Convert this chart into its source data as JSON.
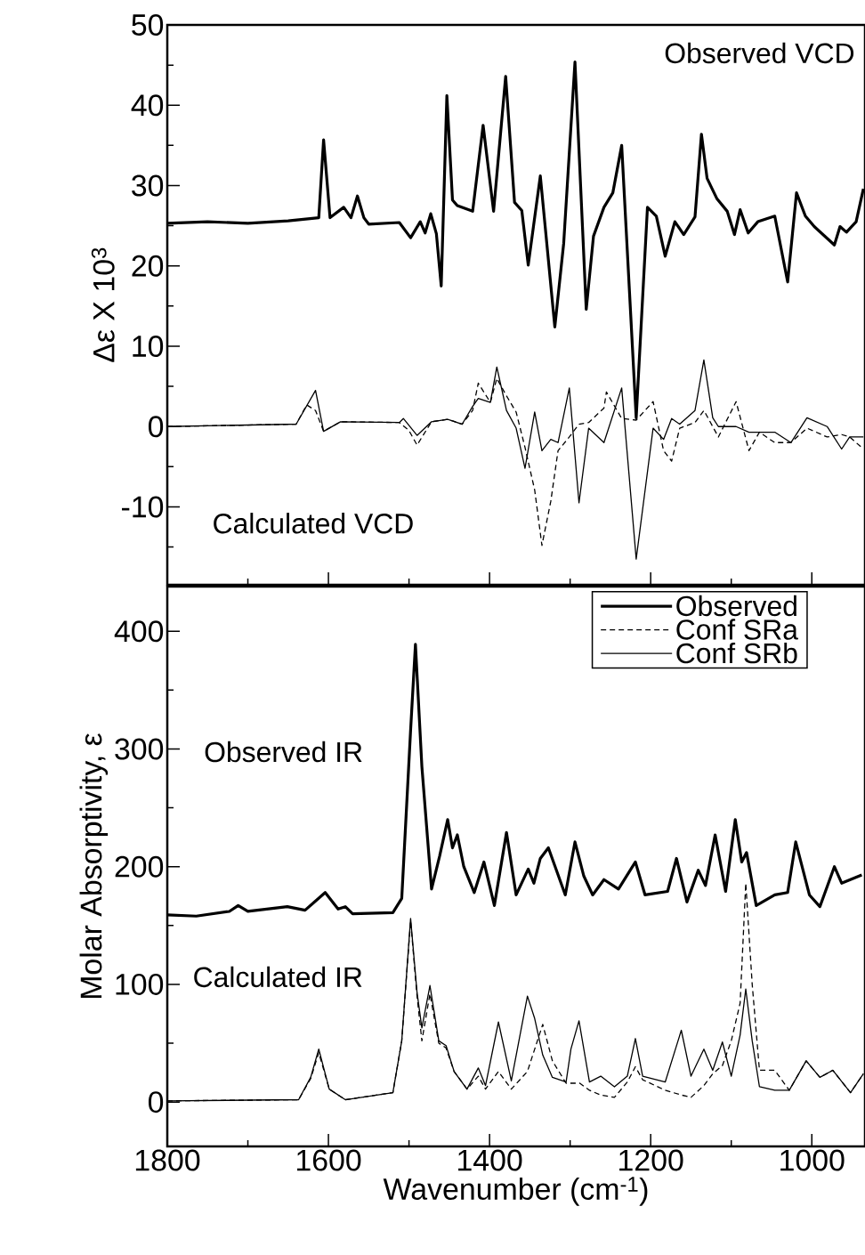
{
  "chart_data": [
    {
      "type": "line",
      "ylabel": "Δε X 10$^{3}$",
      "xlim": [
        1800,
        934
      ],
      "ylim": [
        -19.7,
        50
      ],
      "xticks": [
        1800,
        {
          "value": 1700,
          "label": null
        },
        1600,
        {
          "value": 1500,
          "label": null
        },
        1400,
        {
          "value": 1300,
          "label": null
        },
        1200,
        {
          "value": 1100,
          "label": null
        },
        1000
      ],
      "yticks": [
        {
          "value": -15,
          "label": null
        },
        -10,
        {
          "value": -5,
          "label": null
        },
        0,
        {
          "value": 5,
          "label": null
        },
        10,
        {
          "value": 15,
          "label": null
        },
        20,
        {
          "value": 25,
          "label": null
        },
        30,
        {
          "value": 35,
          "label": null
        },
        40,
        {
          "value": 45,
          "label": null
        },
        50
      ],
      "tick_labels": "y",
      "annotations": [
        "Observed VCD",
        "Calculated VCD"
      ],
      "series": [
        {
          "color": "#000000",
          "line_style": "solid",
          "x": [
            1800,
            1750,
            1700,
            1650,
            1612,
            1606,
            1598,
            1581,
            1572,
            1564,
            1556,
            1550,
            1512,
            1498,
            1486,
            1480,
            1473,
            1466,
            1460,
            1453,
            1446,
            1440,
            1421,
            1408,
            1395,
            1380,
            1369,
            1360,
            1352,
            1337,
            1319,
            1308,
            1294,
            1280,
            1271,
            1258,
            1247,
            1236,
            1218,
            1204,
            1193,
            1182,
            1170,
            1159,
            1145,
            1137,
            1130,
            1118,
            1105,
            1096,
            1089,
            1079,
            1067,
            1046,
            1030,
            1019,
            1008,
            997,
            972,
            965,
            957,
            945,
            936
          ],
          "values": [
            25.3,
            25.5,
            25.3,
            25.6,
            26,
            35.7,
            26,
            27.3,
            26,
            28.7,
            26,
            25.2,
            25.4,
            23.5,
            25.5,
            24.1,
            26.5,
            24,
            17.5,
            41.2,
            28.2,
            27.5,
            26.8,
            37.5,
            26.8,
            43.6,
            27.9,
            26.9,
            20.1,
            31.2,
            12.4,
            22.8,
            45.4,
            14.6,
            23.7,
            27.3,
            29.1,
            35,
            1.1,
            27.3,
            26.2,
            21.2,
            25.5,
            23.9,
            26.1,
            36.4,
            30.9,
            28.4,
            26.8,
            23.9,
            27,
            24.1,
            25.5,
            26.2,
            18,
            29.1,
            26.2,
            24.9,
            22.6,
            24.9,
            24.2,
            25.5,
            29.6
          ]
        },
        {
          "color": "#000000",
          "line_style": "dashed",
          "x": [
            1800,
            1640,
            1627,
            1616,
            1606,
            1585,
            1512,
            1500,
            1490,
            1472,
            1452,
            1434,
            1421,
            1414,
            1399,
            1391,
            1380,
            1367,
            1356,
            1344,
            1335,
            1324,
            1315,
            1301,
            1289,
            1277,
            1258,
            1255,
            1236,
            1218,
            1197,
            1184,
            1174,
            1164,
            1145,
            1134,
            1123,
            1116,
            1094,
            1078,
            1065,
            1046,
            1026,
            1006,
            981,
            963,
            953,
            936
          ],
          "values": [
            0,
            0.3,
            2.7,
            2,
            -0.6,
            0.6,
            0.5,
            -0.5,
            -2.3,
            0.6,
            0.9,
            0.3,
            2,
            5.4,
            3,
            6,
            4,
            1.8,
            -2.6,
            -7.9,
            -14.8,
            -9.3,
            -3,
            -1.3,
            0.3,
            0.5,
            2.3,
            4.3,
            1,
            0.8,
            3.1,
            -3,
            -4.3,
            -0.2,
            0.5,
            2,
            0,
            -1.3,
            3.1,
            -3,
            -0.7,
            -2,
            -2,
            -0.2,
            -1.3,
            -1,
            -1.3,
            -2.8
          ]
        },
        {
          "color": "#000000",
          "line_style": "solid",
          "x": [
            1800,
            1640,
            1616,
            1606,
            1585,
            1512,
            1507,
            1490,
            1472,
            1452,
            1434,
            1421,
            1414,
            1399,
            1391,
            1379,
            1367,
            1356,
            1344,
            1335,
            1324,
            1315,
            1301,
            1289,
            1277,
            1258,
            1236,
            1218,
            1197,
            1184,
            1174,
            1164,
            1145,
            1134,
            1123,
            1116,
            1094,
            1078,
            1065,
            1046,
            1026,
            1006,
            981,
            963,
            953,
            936
          ],
          "values": [
            0,
            0.3,
            4.5,
            -0.6,
            0.6,
            0.5,
            1,
            -1.1,
            0.6,
            0.9,
            0.3,
            2.5,
            3.5,
            3,
            7.4,
            2,
            -0.2,
            -5.2,
            1.8,
            -3,
            -1.6,
            -2,
            4.8,
            -9.5,
            -0.2,
            -2,
            4.8,
            -16.5,
            -0.2,
            -1.6,
            1,
            0.3,
            2,
            8.3,
            1.1,
            0,
            0,
            -0.7,
            -0.7,
            -0.7,
            -2,
            1.1,
            0,
            -2.8,
            -1.3,
            -1.3
          ]
        }
      ]
    },
    {
      "type": "line",
      "xlabel": "Wavenumber (cm$^{-1}$)",
      "ylabel": "Molar Absorptivity, ε",
      "xlim": [
        1800,
        934
      ],
      "ylim": [
        -37.7,
        438
      ],
      "xticks": [
        1800,
        {
          "value": 1700,
          "label": null
        },
        1600,
        {
          "value": 1500,
          "label": null
        },
        1400,
        {
          "value": 1300,
          "label": null
        },
        1200,
        {
          "value": 1100,
          "label": null
        },
        1000
      ],
      "yticks": [
        0,
        {
          "value": 50,
          "label": null
        },
        100,
        {
          "value": 150,
          "label": null
        },
        200,
        {
          "value": 250,
          "label": null
        },
        300,
        {
          "value": 350,
          "label": null
        },
        400
      ],
      "legend": "top right",
      "annotations": [
        "Observed IR",
        "Calculated IR"
      ],
      "series": [
        {
          "name": "Observed",
          "color": "#000000",
          "line_style": "solid",
          "x": [
            1800,
            1764,
            1723,
            1712,
            1700,
            1651,
            1629,
            1604,
            1588,
            1579,
            1570,
            1520,
            1509,
            1498,
            1492,
            1484,
            1472,
            1462,
            1452,
            1446,
            1440,
            1432,
            1419,
            1407,
            1394,
            1379,
            1367,
            1352,
            1345,
            1337,
            1327,
            1306,
            1294,
            1283,
            1272,
            1258,
            1240,
            1219,
            1207,
            1179,
            1168,
            1155,
            1141,
            1132,
            1120,
            1107,
            1095,
            1087,
            1081,
            1069,
            1046,
            1030,
            1020,
            1003,
            990,
            972,
            963,
            938
          ],
          "values": [
            159,
            158,
            162,
            167,
            162,
            166,
            163,
            178,
            164,
            166,
            160,
            161,
            173,
            316,
            389,
            285,
            181,
            209,
            240,
            216,
            227,
            200,
            178,
            204,
            167,
            229,
            176,
            198,
            186,
            207,
            216,
            176,
            221,
            192,
            176,
            189,
            181,
            204,
            176,
            179,
            207,
            170,
            197,
            184,
            227,
            179,
            240,
            204,
            212,
            167,
            176,
            178,
            221,
            176,
            166,
            200,
            186,
            193
          ]
        },
        {
          "name": "Conf SRa",
          "color": "#000000",
          "line_style": "dashed",
          "x": [
            1800,
            1637,
            1622,
            1612,
            1599,
            1579,
            1520,
            1509,
            1498,
            1490,
            1484,
            1474,
            1463,
            1454,
            1444,
            1428,
            1414,
            1405,
            1389,
            1373,
            1353,
            1334,
            1322,
            1305,
            1288,
            1276,
            1262,
            1245,
            1229,
            1219,
            1210,
            1182,
            1162,
            1150,
            1134,
            1123,
            1111,
            1100,
            1089,
            1082,
            1074,
            1065,
            1046,
            1028,
            1007,
            990,
            974,
            952,
            936
          ],
          "values": [
            1,
            2,
            20,
            42,
            11,
            2,
            8,
            52,
            154,
            90,
            52,
            92,
            50,
            46,
            26,
            11,
            22,
            11,
            26,
            11,
            26,
            66,
            35,
            16,
            16,
            10,
            6,
            4,
            17,
            30,
            19,
            10,
            6,
            4,
            14,
            24,
            31,
            52,
            84,
            186,
            100,
            27,
            27,
            10,
            35,
            21,
            27,
            8,
            24
          ]
        },
        {
          "name": "Conf SRb",
          "color": "#000000",
          "line_style": "solid",
          "x": [
            1800,
            1637,
            1622,
            1612,
            1599,
            1579,
            1520,
            1509,
            1498,
            1490,
            1484,
            1474,
            1463,
            1454,
            1444,
            1428,
            1414,
            1405,
            1389,
            1373,
            1353,
            1344,
            1334,
            1322,
            1305,
            1299,
            1289,
            1276,
            1262,
            1245,
            1229,
            1219,
            1210,
            1182,
            1162,
            1150,
            1134,
            1123,
            1111,
            1100,
            1089,
            1082,
            1074,
            1065,
            1046,
            1028,
            1007,
            990,
            974,
            952,
            936
          ],
          "values": [
            1,
            2,
            21,
            45,
            11,
            2,
            8,
            52,
            156,
            93,
            63,
            99,
            52,
            48,
            26,
            11,
            29,
            14,
            68,
            18,
            90,
            71,
            40,
            21,
            17,
            45,
            69,
            17,
            22,
            13,
            22,
            54,
            22,
            17,
            61,
            22,
            45,
            27,
            51,
            22,
            57,
            96,
            52,
            13,
            10,
            10,
            35,
            21,
            27,
            8,
            24
          ]
        }
      ]
    }
  ]
}
